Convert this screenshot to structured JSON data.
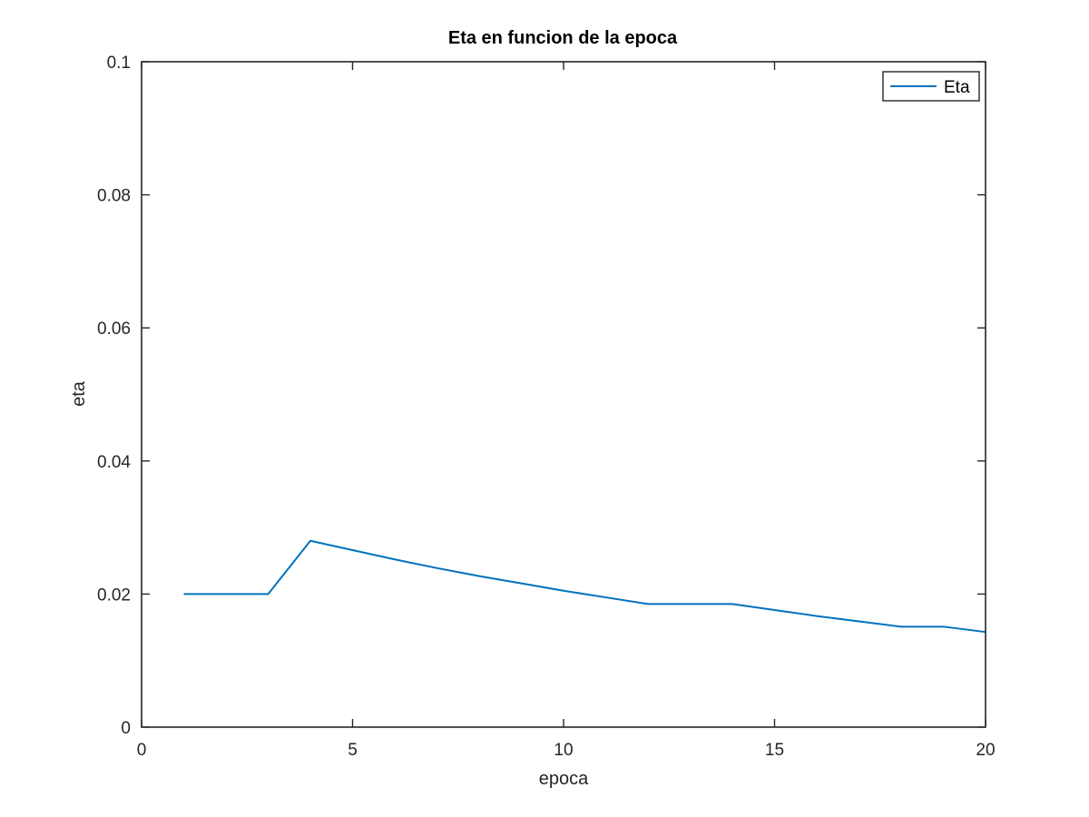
{
  "chart_data": {
    "type": "line",
    "title": "Eta en funcion de la epoca",
    "xlabel": "epoca",
    "ylabel": "eta",
    "xlim": [
      0,
      20
    ],
    "ylim": [
      0,
      0.1
    ],
    "xticks": [
      0,
      5,
      10,
      15,
      20
    ],
    "xtick_labels": [
      "0",
      "5",
      "10",
      "15",
      "20"
    ],
    "yticks": [
      0,
      0.02,
      0.04,
      0.06,
      0.08,
      0.1
    ],
    "ytick_labels": [
      "0",
      "0.02",
      "0.04",
      "0.06",
      "0.08",
      "0.1"
    ],
    "grid": false,
    "legend_position": "top-right",
    "series": [
      {
        "name": "Eta",
        "color": "#0072BD",
        "x": [
          1,
          2,
          3,
          4,
          5,
          6,
          7,
          8,
          9,
          10,
          11,
          12,
          13,
          14,
          15,
          16,
          17,
          18,
          19,
          20
        ],
        "y": [
          0.02,
          0.02,
          0.02,
          0.028,
          0.0266,
          0.0252,
          0.0239,
          0.0227,
          0.0216,
          0.0205,
          0.0195,
          0.0185,
          0.0185,
          0.0185,
          0.0176,
          0.0167,
          0.0159,
          0.0151,
          0.0151,
          0.0143
        ]
      }
    ]
  }
}
